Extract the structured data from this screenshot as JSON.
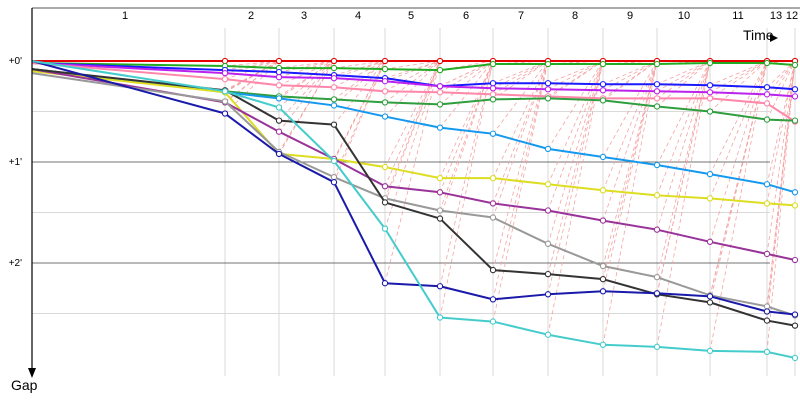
{
  "chart_data": {
    "type": "line",
    "title": "",
    "xlabel": "Time",
    "ylabel": "Gap",
    "x_ticks": [
      "1",
      "2",
      "3",
      "4",
      "5",
      "6",
      "7",
      "8",
      "9",
      "10",
      "11",
      "13",
      "12"
    ],
    "y_ticks": [
      "+0'",
      "+1'",
      "+2'"
    ],
    "ylim": [
      0,
      3.1
    ],
    "grid": true,
    "series": [
      {
        "color": "#e60000",
        "y": [
          0,
          0,
          0,
          0,
          0,
          0,
          0,
          0,
          0,
          0,
          0,
          0,
          0
        ]
      },
      {
        "color": "#22aa22",
        "y": [
          0.02,
          0.05,
          0.07,
          0.07,
          0.08,
          0.09,
          0.03,
          0.03,
          0.03,
          0.03,
          0.02,
          0.02,
          0.04
        ]
      },
      {
        "color": "#1a1aff",
        "y": [
          0.02,
          0.09,
          0.11,
          0.14,
          0.17,
          0.25,
          0.22,
          0.22,
          0.23,
          0.23,
          0.24,
          0.26,
          0.28
        ]
      },
      {
        "color": "#bb22ee",
        "y": [
          0.02,
          0.12,
          0.16,
          0.17,
          0.2,
          0.25,
          0.27,
          0.28,
          0.29,
          0.3,
          0.31,
          0.33,
          0.35
        ]
      },
      {
        "color": "#ff88aa",
        "y": [
          0.02,
          0.18,
          0.24,
          0.26,
          0.3,
          0.31,
          0.33,
          0.35,
          0.37,
          0.37,
          0.37,
          0.42,
          0.6
        ]
      },
      {
        "color": "#2f9e3f",
        "y": [
          0.08,
          0.3,
          0.35,
          0.38,
          0.41,
          0.43,
          0.38,
          0.37,
          0.39,
          0.45,
          0.5,
          0.58,
          0.59
        ]
      },
      {
        "color": "#1499ee",
        "y": [
          0.08,
          0.31,
          0.37,
          0.44,
          0.55,
          0.66,
          0.72,
          0.87,
          0.95,
          1.03,
          1.12,
          1.22,
          1.3
        ]
      },
      {
        "color": "#dddd22",
        "y": [
          0.1,
          0.31,
          0.92,
          0.97,
          1.05,
          1.16,
          1.16,
          1.22,
          1.28,
          1.33,
          1.36,
          1.41,
          1.43
        ]
      },
      {
        "color": "#993399",
        "y": [
          0.08,
          0.41,
          0.7,
          0.97,
          1.24,
          1.3,
          1.41,
          1.48,
          1.58,
          1.67,
          1.79,
          1.91,
          1.97
        ]
      },
      {
        "color": "#999999",
        "y": [
          0.12,
          0.4,
          0.9,
          1.15,
          1.36,
          1.48,
          1.55,
          1.81,
          2.03,
          2.14,
          2.32,
          2.43,
          2.52
        ]
      },
      {
        "color": "#333333",
        "y": [
          0.08,
          0.29,
          0.59,
          0.63,
          1.4,
          1.56,
          2.07,
          2.11,
          2.16,
          2.31,
          2.39,
          2.57,
          2.62
        ]
      },
      {
        "color": "#1a1aaa",
        "y": [
          0.0,
          0.52,
          0.92,
          1.2,
          2.2,
          2.23,
          2.36,
          2.31,
          2.28,
          2.3,
          2.33,
          2.48,
          2.51
        ]
      },
      {
        "color": "#44cccc",
        "y": [
          0.0,
          0.3,
          0.46,
          0.99,
          1.66,
          2.54,
          2.58,
          2.71,
          2.81,
          2.83,
          2.87,
          2.88,
          2.94
        ]
      }
    ]
  }
}
